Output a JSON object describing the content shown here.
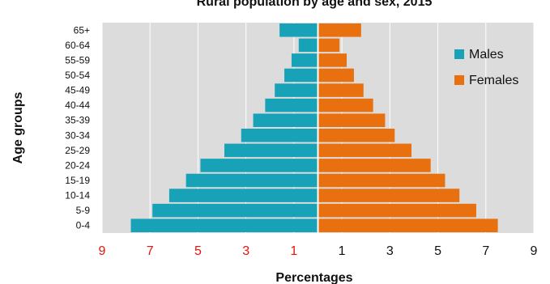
{
  "chart_data": {
    "type": "bar",
    "orientation": "horizontal",
    "title": "Rural population by age and sex, 2015",
    "xlabel": "Percentages",
    "ylabel": "Age groups",
    "categories": [
      "0-4",
      "5-9",
      "10-14",
      "15-19",
      "20-24",
      "25-29",
      "30-34",
      "35-39",
      "40-44",
      "45-49",
      "50-54",
      "55-59",
      "60-64",
      "65+"
    ],
    "series": [
      {
        "name": "Males",
        "color": "#17a2b8",
        "values": [
          7.8,
          6.9,
          6.2,
          5.5,
          4.9,
          3.9,
          3.2,
          2.7,
          2.2,
          1.8,
          1.4,
          1.1,
          0.8,
          1.6
        ]
      },
      {
        "name": "Females",
        "color": "#e8700f",
        "values": [
          7.5,
          6.6,
          5.9,
          5.3,
          4.7,
          3.9,
          3.2,
          2.8,
          2.3,
          1.9,
          1.5,
          1.2,
          0.9,
          1.8
        ]
      }
    ],
    "xlim": [
      -9,
      9
    ],
    "xticks": [
      -9,
      -7,
      -5,
      -3,
      -1,
      1,
      3,
      5,
      7,
      9
    ],
    "xtick_labels": [
      "9",
      "7",
      "5",
      "3",
      "1",
      "1",
      "3",
      "5",
      "7",
      "9"
    ],
    "left_tick_color": "#e8120f",
    "right_tick_color": "#111111",
    "grid": "vertical",
    "legend_position": "top-right",
    "plot_background": "#dcdcdc"
  }
}
